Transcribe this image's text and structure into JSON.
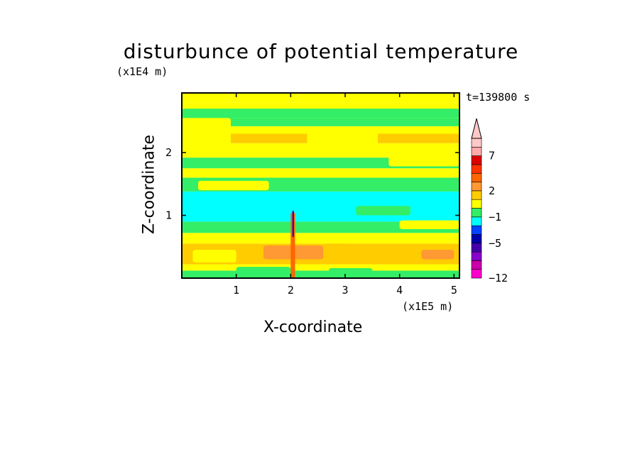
{
  "chart_data": {
    "type": "heatmap",
    "title": "disturbunce of potential temperature",
    "xlabel": "X-coordinate",
    "ylabel": "Z-coordinate",
    "x_unit": "(x1E5 m)",
    "z_unit": "(x1E4 m)",
    "time_label": "t=139800 s",
    "xlim": [
      0,
      5.1
    ],
    "ylim": [
      0,
      2.95
    ],
    "x_ticks": [
      1,
      2,
      3,
      4,
      5
    ],
    "x_tick_labels": [
      "1",
      "2",
      "3",
      "4",
      "5"
    ],
    "y_ticks": [
      1,
      2
    ],
    "y_tick_labels": [
      "1",
      "2"
    ],
    "colorbar": {
      "colors": [
        "#ff00cc",
        "#cc00aa",
        "#8800cc",
        "#4400aa",
        "#0000aa",
        "#0044ff",
        "#00ffff",
        "#33ee66",
        "#ffff00",
        "#ffcc00",
        "#ff9933",
        "#ff6600",
        "#ff3300",
        "#dd0000",
        "#ffaaaa",
        "#ffc8c8"
      ],
      "tick_labels": [
        "-12",
        "-5",
        "-1",
        "2",
        "7"
      ],
      "tick_after_bin": [
        -1,
        3,
        6,
        9,
        13
      ],
      "extend": "max"
    },
    "bands": [
      {
        "z0": 0.0,
        "z1": 0.12,
        "color": "#33ee66"
      },
      {
        "z0": 0.12,
        "z1": 0.22,
        "color": "#ffff00"
      },
      {
        "z0": 0.22,
        "z1": 0.55,
        "color": "#ffcc00"
      },
      {
        "z0": 0.55,
        "z1": 0.72,
        "color": "#ffff00"
      },
      {
        "z0": 0.72,
        "z1": 0.9,
        "color": "#33ee66"
      },
      {
        "z0": 0.9,
        "z1": 1.38,
        "color": "#00ffff"
      },
      {
        "z0": 1.38,
        "z1": 1.6,
        "color": "#33ee66"
      },
      {
        "z0": 1.6,
        "z1": 1.75,
        "color": "#ffff00"
      },
      {
        "z0": 1.75,
        "z1": 1.92,
        "color": "#33ee66"
      },
      {
        "z0": 1.92,
        "z1": 2.15,
        "color": "#ffff00"
      },
      {
        "z0": 2.15,
        "z1": 2.3,
        "color": "#ffcc00"
      },
      {
        "z0": 2.3,
        "z1": 2.42,
        "color": "#ffff00"
      },
      {
        "z0": 2.42,
        "z1": 2.55,
        "color": "#33ee66"
      },
      {
        "z0": 2.55,
        "z1": 2.8,
        "color": "#ffff00"
      },
      {
        "z0": 2.8,
        "z1": 2.95,
        "color": "#ffff00"
      }
    ],
    "patches": [
      {
        "x0": 0.0,
        "x1": 5.1,
        "z0": 2.55,
        "z1": 2.7,
        "color": "#33ee66"
      },
      {
        "x0": 0.0,
        "x1": 0.9,
        "z0": 2.0,
        "z1": 2.55,
        "color": "#ffff00"
      },
      {
        "x0": 2.3,
        "x1": 3.6,
        "z0": 1.95,
        "z1": 2.4,
        "color": "#ffff00"
      },
      {
        "x0": 3.8,
        "x1": 5.1,
        "z0": 1.78,
        "z1": 1.95,
        "color": "#ffff00"
      },
      {
        "x0": 0.3,
        "x1": 1.6,
        "z0": 1.4,
        "z1": 1.55,
        "color": "#ffff00"
      },
      {
        "x0": 3.2,
        "x1": 4.2,
        "z0": 1.0,
        "z1": 1.15,
        "color": "#33ee66"
      },
      {
        "x0": 4.0,
        "x1": 5.1,
        "z0": 0.78,
        "z1": 0.92,
        "color": "#ffff00"
      },
      {
        "x0": 0.2,
        "x1": 1.0,
        "z0": 0.25,
        "z1": 0.45,
        "color": "#ffff00"
      },
      {
        "x0": 1.5,
        "x1": 2.6,
        "z0": 0.3,
        "z1": 0.52,
        "color": "#ff9933"
      },
      {
        "x0": 2.6,
        "x1": 3.1,
        "z0": 0.35,
        "z1": 0.55,
        "color": "#ffcc00"
      },
      {
        "x0": 3.6,
        "x1": 4.3,
        "z0": 0.35,
        "z1": 0.52,
        "color": "#ffcc00"
      },
      {
        "x0": 4.4,
        "x1": 5.0,
        "z0": 0.3,
        "z1": 0.45,
        "color": "#ff9933"
      },
      {
        "x0": 1.0,
        "x1": 2.0,
        "z0": 0.08,
        "z1": 0.18,
        "color": "#33ee66"
      },
      {
        "x0": 2.7,
        "x1": 3.5,
        "z0": 0.06,
        "z1": 0.16,
        "color": "#33ee66"
      },
      {
        "x0": 2.0,
        "x1": 2.08,
        "z0": 0.0,
        "z1": 1.05,
        "color": "#ff6600"
      },
      {
        "x0": 2.03,
        "x1": 2.06,
        "z0": 0.65,
        "z1": 1.08,
        "color": "#4400aa"
      }
    ]
  }
}
